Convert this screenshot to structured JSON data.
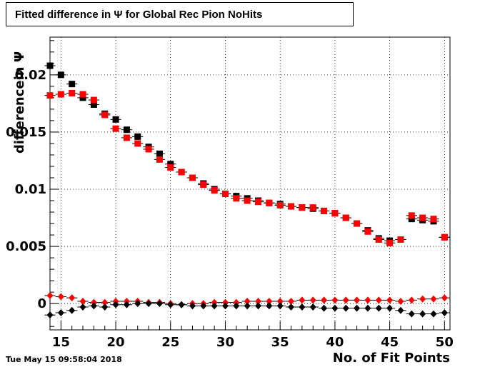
{
  "chart_data": {
    "type": "scatter",
    "title": "Fitted difference in  Ψ  for Global Rec Pion NoHits",
    "xlabel": "No. of Fit Points",
    "ylabel": "differencein  Ψ",
    "xlim": [
      14,
      50.5
    ],
    "ylim": [
      -0.0023,
      0.0233
    ],
    "xticks": [
      15,
      20,
      25,
      30,
      35,
      40,
      45,
      50
    ],
    "yticks": [
      0,
      0.005,
      0.01,
      0.015,
      0.02
    ],
    "ytick_labels": [
      "0",
      "0.005",
      "0.01",
      "0.015",
      "0.02"
    ],
    "grid": true,
    "x": [
      14,
      15,
      16,
      17,
      18,
      19,
      20,
      21,
      22,
      23,
      24,
      25,
      26,
      27,
      28,
      29,
      30,
      31,
      32,
      33,
      34,
      35,
      36,
      37,
      38,
      39,
      40,
      41,
      42,
      43,
      44,
      45,
      46,
      47,
      48,
      49,
      50
    ],
    "series": [
      {
        "marker": "square",
        "color": "#000000",
        "values": [
          0.0208,
          0.02,
          0.0192,
          0.018,
          0.0174,
          0.0166,
          0.0161,
          0.0152,
          0.0146,
          0.0137,
          0.0131,
          0.0122,
          0.0115,
          0.011,
          0.0105,
          0.01,
          0.0096,
          0.0094,
          0.0092,
          0.009,
          0.0088,
          0.0087,
          0.0085,
          0.0084,
          0.0083,
          0.0081,
          0.0079,
          0.0075,
          0.007,
          0.0064,
          0.0057,
          0.0055,
          0.0056,
          0.0074,
          0.0073,
          0.0072,
          0.0058
        ]
      },
      {
        "marker": "square",
        "color": "#ff0000",
        "values": [
          0.0182,
          0.0183,
          0.0184,
          0.0183,
          0.0178,
          0.0165,
          0.0153,
          0.0145,
          0.014,
          0.0135,
          0.0126,
          0.0119,
          0.0115,
          0.011,
          0.0104,
          0.0099,
          0.0096,
          0.0092,
          0.009,
          0.0089,
          0.0088,
          0.0086,
          0.0085,
          0.0084,
          0.0084,
          0.0081,
          0.0079,
          0.0075,
          0.007,
          0.0063,
          0.0056,
          0.0053,
          0.0056,
          0.0077,
          0.0075,
          0.0074,
          0.0058
        ]
      },
      {
        "marker": "diamond",
        "color": "#ff0000",
        "values": [
          0.0007,
          0.0006,
          0.0005,
          0.0002,
          0.0001,
          0.0001,
          0.0002,
          0.0002,
          0.0002,
          0.0001,
          0.0001,
          0.0,
          -0.0001,
          0.0,
          0.0,
          0.0001,
          0.0001,
          0.0001,
          0.0002,
          0.0002,
          0.0002,
          0.0002,
          0.0002,
          0.0003,
          0.0003,
          0.0003,
          0.0003,
          0.0003,
          0.0003,
          0.0003,
          0.0003,
          0.0003,
          0.0002,
          0.0003,
          0.0004,
          0.0004,
          0.0005
        ]
      },
      {
        "marker": "diamond",
        "color": "#000000",
        "values": [
          -0.001,
          -0.0008,
          -0.0006,
          -0.0003,
          -0.0002,
          -0.0003,
          -0.0001,
          -0.0001,
          0.0,
          0.0,
          0.0,
          -0.0001,
          -0.0001,
          -0.0002,
          -0.0002,
          -0.0002,
          -0.0002,
          -0.0002,
          -0.0002,
          -0.0002,
          -0.0002,
          -0.0002,
          -0.0003,
          -0.0003,
          -0.0003,
          -0.0004,
          -0.0004,
          -0.0004,
          -0.0004,
          -0.0004,
          -0.0004,
          -0.0004,
          -0.0006,
          -0.0009,
          -0.0009,
          -0.0009,
          -0.0008
        ]
      }
    ]
  },
  "footer": {
    "timestamp": "Tue May 15 09:58:04 2018"
  }
}
